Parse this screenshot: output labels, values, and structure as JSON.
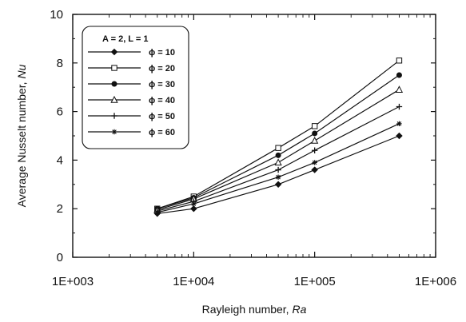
{
  "chart_data": {
    "type": "line",
    "title": "",
    "xlabel": "Rayleigh number, Ra",
    "xlabel_main": "Rayleigh number, ",
    "xlabel_symbol": "Ra",
    "ylabel": "Average Nusselt number, Nu",
    "ylabel_main": "Average Nusselt number, ",
    "ylabel_symbol": "Nu",
    "x_scale": "log",
    "xlim": [
      1000,
      1000000
    ],
    "ylim": [
      0,
      10
    ],
    "x_ticks": [
      1000,
      10000,
      100000,
      1000000
    ],
    "x_tick_labels": [
      "1E+003",
      "1E+004",
      "1E+005",
      "1E+006"
    ],
    "y_ticks": [
      0,
      2,
      4,
      6,
      8,
      10
    ],
    "y_tick_labels": [
      "0",
      "2",
      "4",
      "6",
      "8",
      "10"
    ],
    "grid": false,
    "legend_position": "top-left",
    "legend_title": "A = 2, L = 1",
    "x": [
      5000,
      10000,
      50000,
      100000,
      500000
    ],
    "series": [
      {
        "name": "ϕ = 10",
        "marker": "diamond",
        "values": [
          1.8,
          2.0,
          3.0,
          3.6,
          5.0
        ]
      },
      {
        "name": "ϕ = 20",
        "marker": "square",
        "values": [
          2.0,
          2.5,
          4.5,
          5.4,
          8.1
        ]
      },
      {
        "name": "ϕ = 30",
        "marker": "circle",
        "values": [
          2.0,
          2.45,
          4.2,
          5.1,
          7.5
        ]
      },
      {
        "name": "ϕ = 40",
        "marker": "triangle",
        "values": [
          1.95,
          2.4,
          3.9,
          4.8,
          6.9
        ]
      },
      {
        "name": "ϕ = 50",
        "marker": "plus",
        "values": [
          1.9,
          2.3,
          3.6,
          4.4,
          6.2
        ]
      },
      {
        "name": "ϕ = 60",
        "marker": "star",
        "values": [
          1.85,
          2.2,
          3.3,
          3.9,
          5.5
        ]
      }
    ]
  }
}
